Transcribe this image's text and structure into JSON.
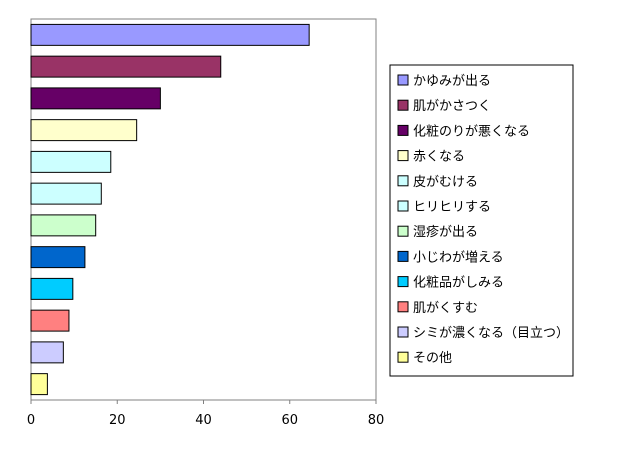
{
  "chart_data": {
    "type": "bar",
    "orientation": "horizontal",
    "categories": [
      "かゆみが出る",
      "肌がかさつく",
      "化粧のりが悪くなる",
      "赤くなる",
      "皮がむける",
      "ヒリヒリする",
      "湿疹が出る",
      "小じわが増える",
      "化粧品がしみる",
      "肌がくすむ",
      "シミが濃くなる（目立つ）",
      "その他"
    ],
    "values": [
      64.5,
      44,
      30,
      24.5,
      18.5,
      16.3,
      15,
      12.5,
      9.7,
      8.8,
      7.5,
      3.8
    ],
    "colors": [
      "#9999ff",
      "#993366",
      "#660066",
      "#ffffcc",
      "#ccffff",
      "#ccffff",
      "#ccffcc",
      "#0066cc",
      "#00ccff",
      "#ff8080",
      "#ccccff",
      "#ffff99"
    ],
    "xlim": [
      0,
      80
    ],
    "xticks": [
      0,
      20,
      40,
      60,
      80
    ],
    "title": "",
    "xlabel": "",
    "ylabel": "",
    "grid": false,
    "legend_position": "right"
  }
}
